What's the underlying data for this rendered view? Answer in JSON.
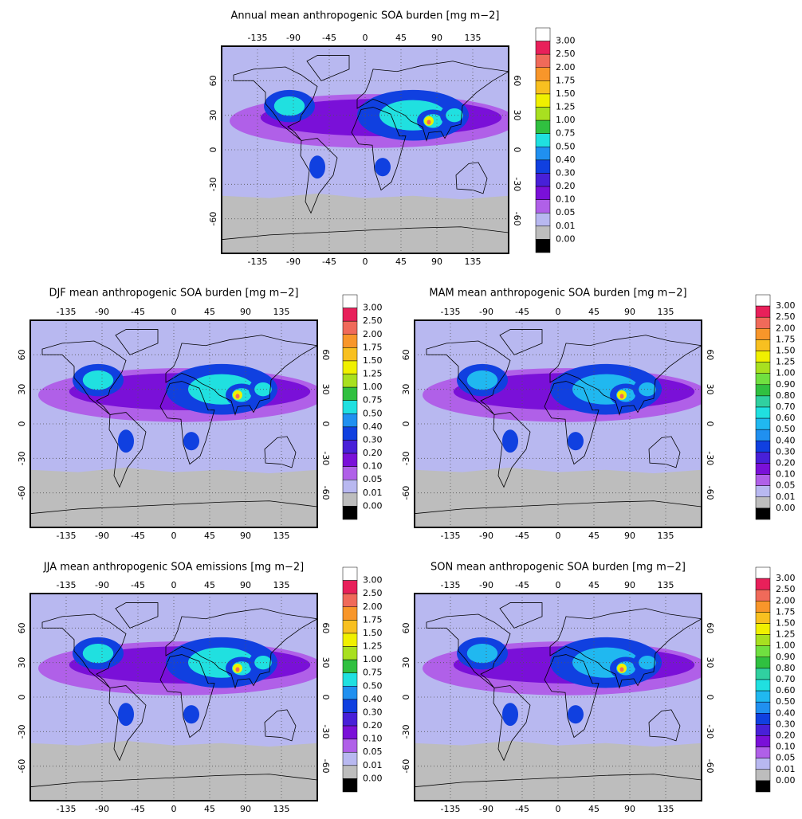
{
  "panels": [
    {
      "title": "Annual mean anthropogenic SOA burden [mg m−2]",
      "lon_ticks": [
        -135,
        -90,
        -45,
        0,
        45,
        90,
        135
      ],
      "lat_ticks": [
        -60,
        -30,
        0,
        30,
        60
      ],
      "colorbar": {
        "labels": [
          "3.00",
          "2.50",
          "2.00",
          "1.75",
          "1.50",
          "1.25",
          "1.00",
          "0.75",
          "0.50",
          "0.40",
          "0.30",
          "0.20",
          "0.10",
          "0.05",
          "0.01",
          "0.00"
        ],
        "colors": [
          "#ffffff",
          "#e8205a",
          "#f06a5a",
          "#f8962a",
          "#f8c020",
          "#f0f000",
          "#a8e020",
          "#30c040",
          "#20e0e0",
          "#2090f0",
          "#1040e0",
          "#4820d8",
          "#7a10d8",
          "#b060e8",
          "#b8b8f0",
          "#bdbdbd",
          "#000000"
        ]
      }
    },
    {
      "title": "DJF mean anthropogenic SOA burden [mg m−2]",
      "lon_ticks": [
        -135,
        -90,
        -45,
        0,
        45,
        90,
        135
      ],
      "lat_ticks": [
        -60,
        -30,
        0,
        30,
        60
      ],
      "colorbar": {
        "labels": [
          "3.00",
          "2.50",
          "2.00",
          "1.75",
          "1.50",
          "1.25",
          "1.00",
          "0.75",
          "0.50",
          "0.40",
          "0.30",
          "0.20",
          "0.10",
          "0.05",
          "0.01",
          "0.00"
        ],
        "colors": [
          "#ffffff",
          "#e8205a",
          "#f06a5a",
          "#f8962a",
          "#f8c020",
          "#f0f000",
          "#a8e020",
          "#30c040",
          "#20e0e0",
          "#2090f0",
          "#1040e0",
          "#4820d8",
          "#7a10d8",
          "#b060e8",
          "#b8b8f0",
          "#bdbdbd",
          "#000000"
        ]
      }
    },
    {
      "title": "MAM mean anthropogenic SOA burden [mg m−2]",
      "lon_ticks": [
        -135,
        -90,
        -45,
        0,
        45,
        90,
        135
      ],
      "lat_ticks": [
        -60,
        -30,
        0,
        30,
        60
      ],
      "colorbar": {
        "labels": [
          "3.00",
          "2.50",
          "2.00",
          "1.75",
          "1.50",
          "1.25",
          "1.00",
          "0.90",
          "0.80",
          "0.70",
          "0.60",
          "0.50",
          "0.40",
          "0.30",
          "0.20",
          "0.10",
          "0.05",
          "0.01",
          "0.00"
        ],
        "colors": [
          "#ffffff",
          "#e8205a",
          "#f06a5a",
          "#f8962a",
          "#f8c020",
          "#f0f000",
          "#a8e020",
          "#70e040",
          "#30c040",
          "#30d0a0",
          "#20e0e0",
          "#20b8f0",
          "#2090f0",
          "#1040e0",
          "#4820d8",
          "#7a10d8",
          "#b060e8",
          "#b8b8f0",
          "#bdbdbd",
          "#000000"
        ]
      }
    },
    {
      "title": "JJA mean anthropogenic SOA emissions [mg m−2]",
      "lon_ticks": [
        -135,
        -90,
        -45,
        0,
        45,
        90,
        135
      ],
      "lat_ticks": [
        -60,
        -30,
        0,
        30,
        60
      ],
      "colorbar": {
        "labels": [
          "3.00",
          "2.50",
          "2.00",
          "1.75",
          "1.50",
          "1.25",
          "1.00",
          "0.75",
          "0.50",
          "0.40",
          "0.30",
          "0.20",
          "0.10",
          "0.05",
          "0.01",
          "0.00"
        ],
        "colors": [
          "#ffffff",
          "#e8205a",
          "#f06a5a",
          "#f8962a",
          "#f8c020",
          "#f0f000",
          "#a8e020",
          "#30c040",
          "#20e0e0",
          "#2090f0",
          "#1040e0",
          "#4820d8",
          "#7a10d8",
          "#b060e8",
          "#b8b8f0",
          "#bdbdbd",
          "#000000"
        ]
      }
    },
    {
      "title": "SON mean anthropogenic SOA burden [mg m−2]",
      "lon_ticks": [
        -135,
        -90,
        -45,
        0,
        45,
        90,
        135
      ],
      "lat_ticks": [
        -60,
        -30,
        0,
        30,
        60
      ],
      "colorbar": {
        "labels": [
          "3.00",
          "2.50",
          "2.00",
          "1.75",
          "1.50",
          "1.25",
          "1.00",
          "0.90",
          "0.80",
          "0.70",
          "0.60",
          "0.50",
          "0.40",
          "0.30",
          "0.20",
          "0.10",
          "0.05",
          "0.01",
          "0.00"
        ],
        "colors": [
          "#ffffff",
          "#e8205a",
          "#f06a5a",
          "#f8962a",
          "#f8c020",
          "#f0f000",
          "#a8e020",
          "#70e040",
          "#30c040",
          "#30d0a0",
          "#20e0e0",
          "#20b8f0",
          "#2090f0",
          "#1040e0",
          "#4820d8",
          "#7a10d8",
          "#b060e8",
          "#b8b8f0",
          "#bdbdbd",
          "#000000"
        ]
      }
    }
  ]
}
